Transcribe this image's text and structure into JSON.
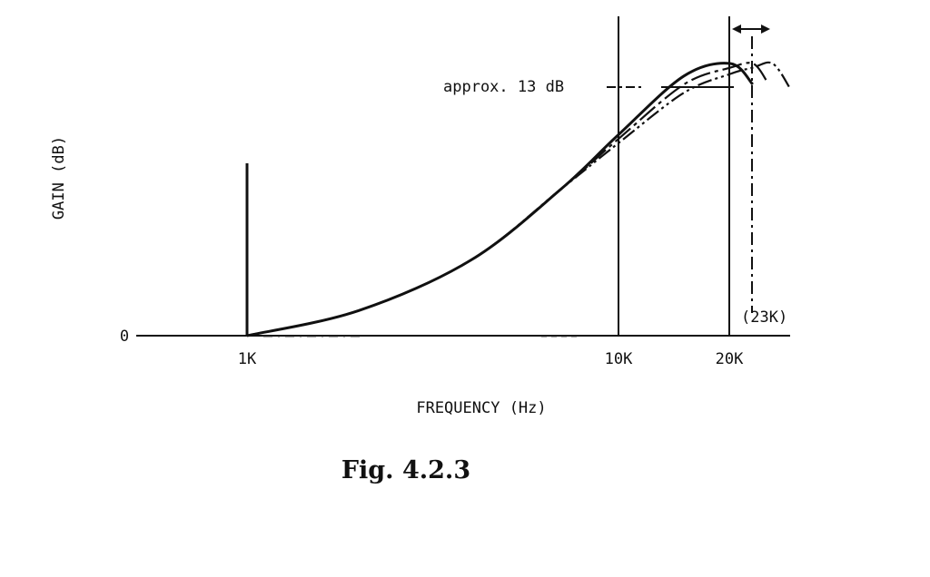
{
  "chart_data": {
    "type": "line",
    "title": "",
    "xlabel": "FREQUENCY (Hz)",
    "ylabel": "GAIN (dB)",
    "x_scale": "log",
    "x_ticks": [
      "1K",
      "10K",
      "20K"
    ],
    "y_ticks": [
      "0"
    ],
    "grid": false,
    "series": [
      {
        "style": "solid",
        "points": [
          [
            1000,
            0
          ],
          [
            2000,
            1.2
          ],
          [
            4000,
            3.6
          ],
          [
            7000,
            7.0
          ],
          [
            10000,
            9.6
          ],
          [
            15000,
            12.4
          ],
          [
            20000,
            13.0
          ],
          [
            23000,
            12.0
          ]
        ]
      },
      {
        "style": "dash-dot",
        "points": [
          [
            1000,
            0
          ],
          [
            2000,
            1.2
          ],
          [
            4000,
            3.6
          ],
          [
            7000,
            7.0
          ],
          [
            10000,
            9.4
          ],
          [
            15000,
            12.0
          ],
          [
            20000,
            12.8
          ],
          [
            23000,
            13.0
          ],
          [
            25000,
            12.2
          ]
        ]
      },
      {
        "style": "dash-dot-dot",
        "points": [
          [
            1000,
            0
          ],
          [
            2000,
            1.2
          ],
          [
            4000,
            3.6
          ],
          [
            7000,
            7.0
          ],
          [
            10000,
            9.2
          ],
          [
            15000,
            11.6
          ],
          [
            20000,
            12.5
          ],
          [
            23000,
            12.8
          ],
          [
            26000,
            13.0
          ],
          [
            29000,
            11.8
          ]
        ]
      }
    ],
    "annotations": [
      {
        "text": "approx. 13 dB"
      },
      {
        "text": "(23K)"
      }
    ],
    "caption": "Fig. 4.2.3"
  }
}
